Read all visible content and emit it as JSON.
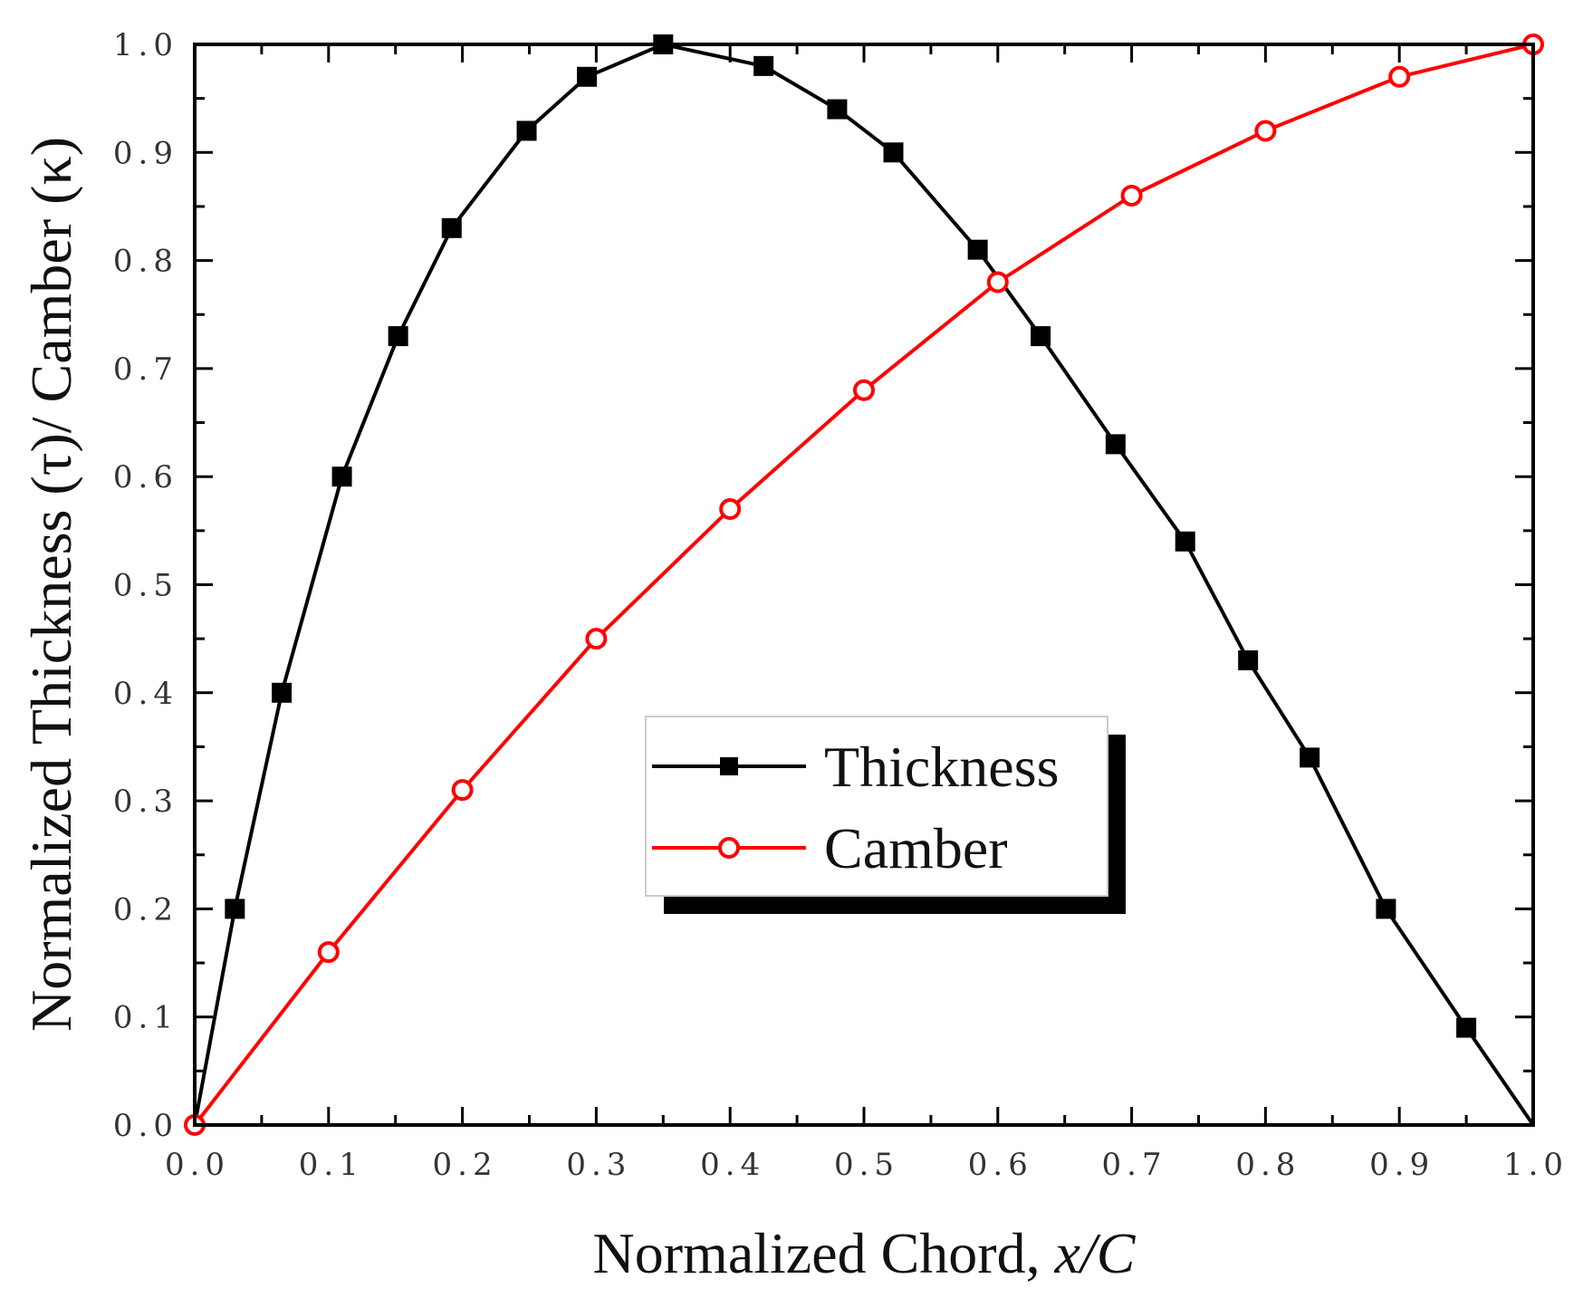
{
  "chart_data": {
    "type": "line",
    "title": "",
    "xlabel": "Normalized Chord, x/C",
    "xlabel_prefix": "Normalized Chord, ",
    "xlabel_italic": "x/C",
    "ylabel": "Normalized Thickness (τ)/ Camber (κ)",
    "xlim": [
      0.0,
      1.0
    ],
    "ylim": [
      0.0,
      1.0
    ],
    "x_ticks": [
      "0.0",
      "0.1",
      "0.2",
      "0.3",
      "0.4",
      "0.5",
      "0.6",
      "0.7",
      "0.8",
      "0.9",
      "1.0"
    ],
    "y_ticks": [
      "0.0",
      "0.1",
      "0.2",
      "0.3",
      "0.4",
      "0.5",
      "0.6",
      "0.7",
      "0.8",
      "0.9",
      "1.0"
    ],
    "grid": false,
    "legend_position": "center-right",
    "series": [
      {
        "name": "Thickness",
        "color": "#000000",
        "marker": "filled-square",
        "x": [
          0.0,
          0.03,
          0.065,
          0.11,
          0.152,
          0.192,
          0.248,
          0.293,
          0.35,
          0.425,
          0.48,
          0.522,
          0.585,
          0.632,
          0.688,
          0.74,
          0.787,
          0.833,
          0.89,
          0.95,
          1.0
        ],
        "y": [
          0.0,
          0.2,
          0.4,
          0.6,
          0.73,
          0.83,
          0.92,
          0.97,
          1.0,
          0.98,
          0.94,
          0.9,
          0.81,
          0.73,
          0.63,
          0.54,
          0.43,
          0.34,
          0.2,
          0.09,
          0.0
        ],
        "marker_skip_indices": [
          0,
          20
        ]
      },
      {
        "name": "Camber",
        "color": "#ff0000",
        "marker": "open-circle",
        "x": [
          0.0,
          0.1,
          0.2,
          0.3,
          0.4,
          0.5,
          0.6,
          0.7,
          0.8,
          0.9,
          1.0
        ],
        "y": [
          0.0,
          0.16,
          0.31,
          0.45,
          0.57,
          0.68,
          0.78,
          0.86,
          0.92,
          0.97,
          1.0
        ],
        "marker_skip_indices": []
      }
    ]
  }
}
